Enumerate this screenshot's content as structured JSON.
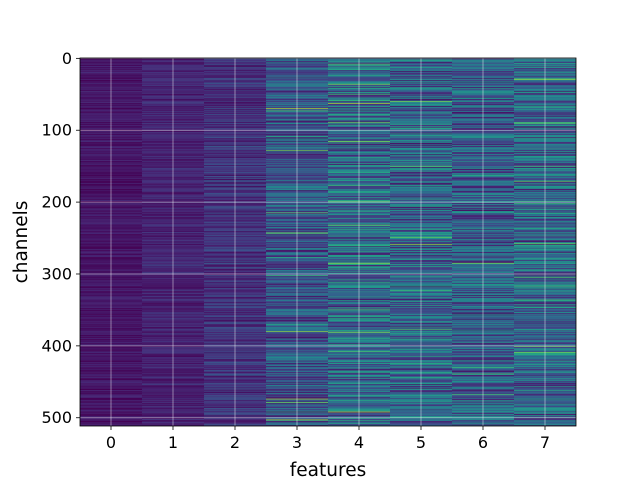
{
  "chart_data": {
    "type": "heatmap",
    "title": "",
    "xlabel": "features",
    "ylabel": "channels",
    "x_categories": [
      "0",
      "1",
      "2",
      "3",
      "4",
      "5",
      "6",
      "7"
    ],
    "y_ticks": [
      0,
      100,
      200,
      300,
      400,
      500
    ],
    "y_range": [
      0,
      511
    ],
    "n_rows": 512,
    "y_inverted": true,
    "colormap": "viridis",
    "grid": true,
    "legend": "none",
    "column_intensity": [
      0.06,
      0.1,
      0.15,
      0.27,
      0.35,
      0.32,
      0.3,
      0.33
    ],
    "column_variability": [
      0.07,
      0.08,
      0.12,
      0.22,
      0.28,
      0.28,
      0.25,
      0.27
    ]
  }
}
